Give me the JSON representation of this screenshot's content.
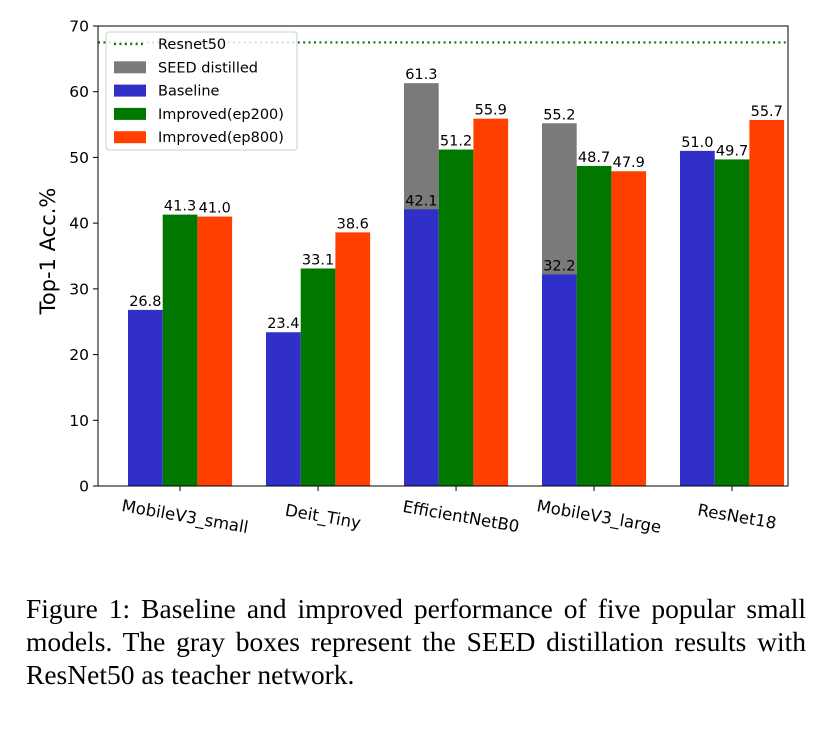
{
  "chart_data": {
    "type": "bar",
    "title": "",
    "xlabel": "",
    "ylabel": "Top-1 Acc.%",
    "ylim": [
      0,
      70
    ],
    "yticks": [
      "0",
      "10",
      "20",
      "30",
      "40",
      "50",
      "60",
      "70"
    ],
    "categories": [
      "MobileV3_small",
      "Deit_Tiny",
      "EfficientNetB0",
      "MobileV3_large",
      "ResNet18"
    ],
    "series": [
      {
        "name": "SEED distilled",
        "color": "#7a7a7a",
        "values": [
          null,
          null,
          61.3,
          55.2,
          null
        ],
        "labels": [
          "",
          "",
          "61.3",
          "55.2",
          ""
        ]
      },
      {
        "name": "Baseline",
        "color": "#3030c8",
        "values": [
          26.8,
          23.4,
          42.1,
          32.2,
          51.0
        ],
        "labels": [
          "26.8",
          "23.4",
          "42.1",
          "32.2",
          "51.0"
        ]
      },
      {
        "name": "Improved(ep200)",
        "color": "#007800",
        "values": [
          41.3,
          33.1,
          51.2,
          48.7,
          49.7
        ],
        "labels": [
          "41.3",
          "33.1",
          "51.2",
          "48.7",
          "49.7"
        ]
      },
      {
        "name": "Improved(ep800)",
        "color": "#ff4000",
        "values": [
          41.0,
          38.6,
          55.9,
          47.9,
          55.7
        ],
        "labels": [
          "41.0",
          "38.6",
          "55.9",
          "47.9",
          "55.7"
        ]
      }
    ],
    "reference_line": {
      "name": "Resnet50",
      "value": 67.5,
      "color": "#007800",
      "style": "dotted"
    },
    "legend_position": "top-left",
    "grid": false
  },
  "caption": "Figure 1: Baseline and improved performance of five popular small models. The gray boxes represent the SEED distillation results with ResNet50 as teacher network."
}
